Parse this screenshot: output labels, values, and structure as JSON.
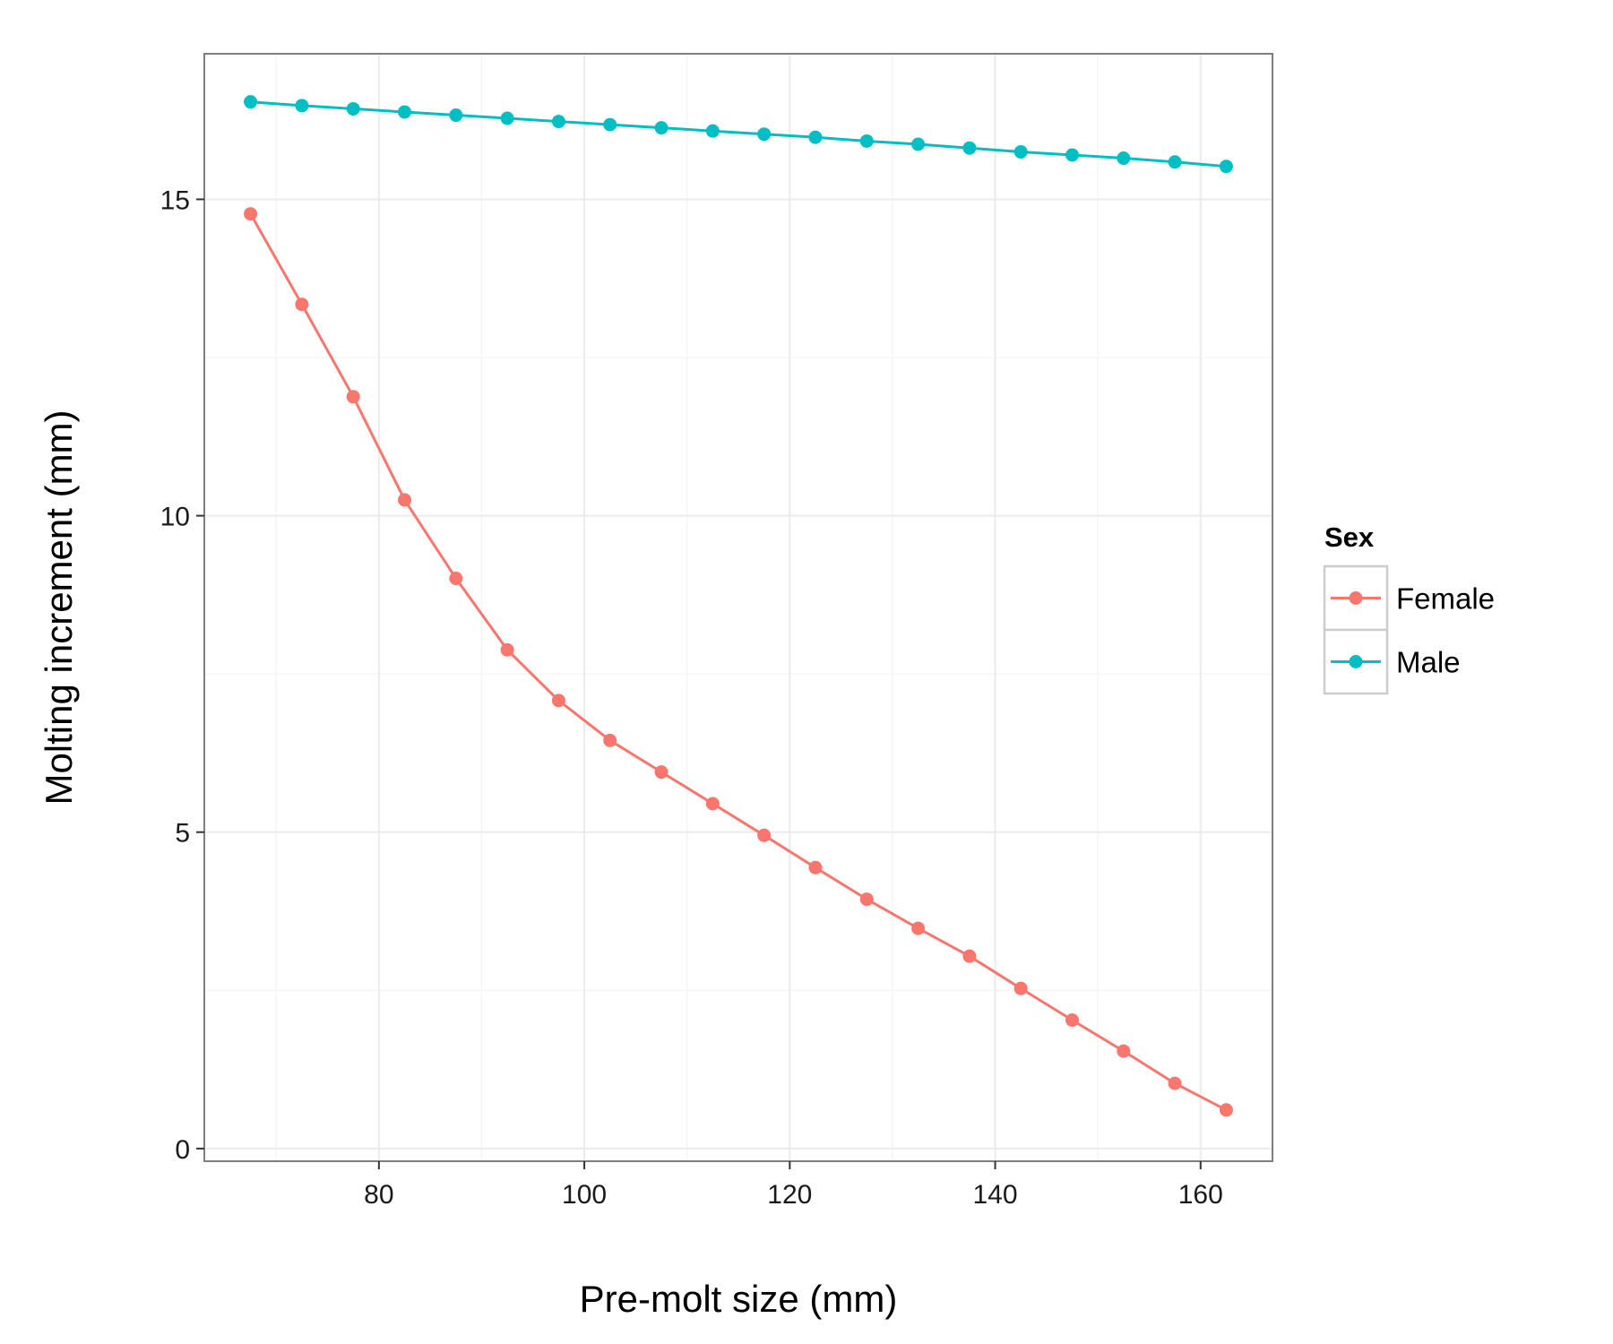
{
  "chart_data": {
    "type": "line",
    "title": "",
    "xlabel": "Pre-molt size (mm)",
    "ylabel": "Molting increment (mm)",
    "xlim": [
      63,
      167
    ],
    "ylim": [
      -0.2,
      17.3
    ],
    "xticks": [
      80,
      100,
      120,
      140,
      160
    ],
    "yticks": [
      0,
      5,
      10,
      15
    ],
    "grid": true,
    "legend": {
      "title": "Sex",
      "placement": "right"
    },
    "x": [
      67.5,
      72.5,
      77.5,
      82.5,
      87.5,
      92.5,
      97.5,
      102.5,
      107.5,
      112.5,
      117.5,
      122.5,
      127.5,
      132.5,
      137.5,
      142.5,
      147.5,
      152.5,
      157.5,
      162.5
    ],
    "series": [
      {
        "name": "Female",
        "color": "#F8766D",
        "values": [
          14.77,
          13.34,
          11.88,
          10.25,
          9.01,
          7.88,
          7.08,
          6.45,
          5.95,
          5.45,
          4.95,
          4.44,
          3.94,
          3.48,
          3.04,
          2.53,
          2.03,
          1.54,
          1.03,
          0.61
        ]
      },
      {
        "name": "Male",
        "color": "#00BFC4",
        "values": [
          16.54,
          16.48,
          16.43,
          16.38,
          16.33,
          16.28,
          16.23,
          16.18,
          16.13,
          16.08,
          16.03,
          15.98,
          15.92,
          15.87,
          15.81,
          15.75,
          15.7,
          15.65,
          15.59,
          15.52
        ]
      }
    ]
  }
}
